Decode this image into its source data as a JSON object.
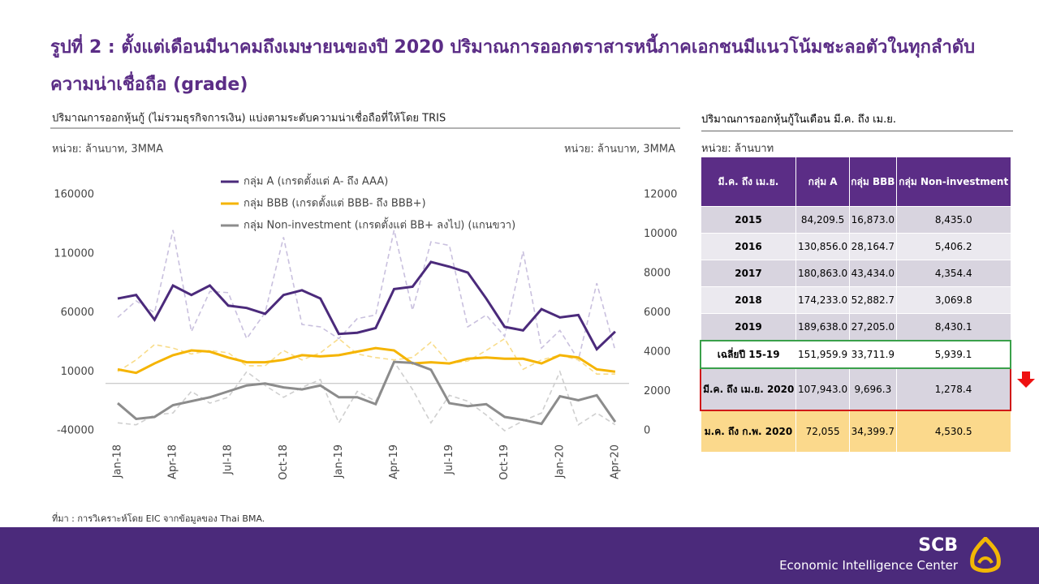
{
  "header": {
    "title": "รูปที่ 2 : ตั้งแต่เดือนมีนาคมถึงเมษายนของปี 2020 ปริมาณการออกตราสารหนี้ภาคเอกชนมีแนวโน้มชะลอตัวในทุกลำดับความน่าเชื่อถือ (grade)"
  },
  "chart_data": {
    "type": "line",
    "title": "ปริมาณการออกหุ้นกู้ (ไม่รวมธุรกิจการเงิน) แบ่งตามระดับความน่าเชื่อถือที่ให้โดย TRIS",
    "y_label": "หน่วย: ล้านบาท, 3MMA",
    "y2_label": "หน่วย: ล้านบาท, 3MMA",
    "categories": [
      "Jan-18",
      null,
      null,
      "Apr-18",
      null,
      null,
      "Jul-18",
      null,
      null,
      "Oct-18",
      null,
      null,
      "Jan-19",
      null,
      null,
      "Apr-19",
      null,
      null,
      "Jul-19",
      null,
      null,
      "Oct-19",
      null,
      null,
      "Jan-20",
      null,
      null,
      "Apr-20"
    ],
    "ylim": [
      -40000,
      160000
    ],
    "yticks": [
      -40000,
      10000,
      60000,
      110000,
      160000
    ],
    "y2lim": [
      0,
      12000
    ],
    "y2ticks": [
      0,
      2000,
      4000,
      6000,
      8000,
      10000,
      12000
    ],
    "legend": "top-left",
    "series": [
      {
        "name": "กลุ่ม A (เกรดตั้งแต่ A- ถึง AAA)",
        "color": "#4b2a7b",
        "raw_color": "#c9c0de",
        "values": [
          72000,
          75000,
          54000,
          83000,
          75000,
          83000,
          66000,
          64000,
          59000,
          75000,
          79000,
          72000,
          42000,
          43000,
          47000,
          80000,
          82000,
          103000,
          99000,
          94000,
          72000,
          48000,
          45000,
          63000,
          56000,
          58000,
          29000,
          44000
        ],
        "raw": [
          56000,
          70000,
          60000,
          130000,
          44000,
          78000,
          77000,
          38000,
          60000,
          124000,
          50000,
          48000,
          38000,
          55000,
          58000,
          130000,
          62000,
          120000,
          117000,
          48000,
          58000,
          40000,
          112000,
          30000,
          45000,
          20000,
          85000,
          28000
        ]
      },
      {
        "name": "กลุ่ม BBB (เกรดตั้งแต่ BBB- ถึง BBB+)",
        "color": "#f5b400",
        "raw_color": "#f8dc8a",
        "values": [
          12000,
          9000,
          17000,
          24000,
          28000,
          27000,
          22000,
          18000,
          18000,
          20000,
          24000,
          23000,
          24000,
          27000,
          30000,
          28000,
          17000,
          18000,
          17000,
          21000,
          22000,
          21000,
          21000,
          17000,
          24000,
          22000,
          12000,
          10000
        ],
        "raw": [
          10000,
          20000,
          33000,
          30000,
          25000,
          28000,
          26000,
          15000,
          15000,
          28000,
          20000,
          26000,
          38000,
          25000,
          22000,
          20000,
          22000,
          35000,
          17000,
          19000,
          28000,
          38000,
          12000,
          20000,
          24000,
          20000,
          8000,
          8000
        ]
      },
      {
        "name": "กลุ่ม Non-investment (เกรดตั้งแต่ BB+ ลงไป) (แกนขวา)",
        "color": "#8c8c8c",
        "raw_color": "#cfcfcf",
        "axis": "y2",
        "values": [
          1400,
          600,
          700,
          1300,
          1500,
          1700,
          2000,
          2300,
          2400,
          2200,
          2100,
          2300,
          1700,
          1700,
          1350,
          3500,
          3450,
          3100,
          1400,
          1250,
          1350,
          700,
          550,
          350,
          1750,
          1550,
          1800,
          450
        ],
        "raw": [
          400,
          300,
          800,
          900,
          2000,
          1400,
          1700,
          3000,
          2300,
          1700,
          2200,
          2600,
          400,
          2000,
          1500,
          3500,
          2100,
          400,
          1800,
          1500,
          800,
          0,
          500,
          900,
          3000,
          300,
          900,
          300
        ]
      }
    ]
  },
  "table": {
    "title": "ปริมาณการออกหุ้นกู้ในเดือน มี.ค. ถึง เม.ย.",
    "unit": "หน่วย: ล้านบาท",
    "columns": [
      "มี.ค. ถึง เม.ย.",
      "กลุ่ม A",
      "กลุ่ม BBB",
      "กลุ่ม Non-investment"
    ],
    "rows": [
      [
        "2015",
        "84,209.5",
        "16,873.0",
        "8,435.0"
      ],
      [
        "2016",
        "130,856.0",
        "28,164.7",
        "5,406.2"
      ],
      [
        "2017",
        "180,863.0",
        "43,434.0",
        "4,354.4"
      ],
      [
        "2018",
        "174,233.0",
        "52,882.7",
        "3,069.8"
      ],
      [
        "2019",
        "189,638.0",
        "27,205.0",
        "8,430.1"
      ],
      [
        "เฉลี่ยปี 15-19",
        "151,959.9",
        "33,711.9",
        "5,939.1"
      ],
      [
        "มี.ค. ถึง เม.ย. 2020",
        "107,943.0",
        "9,696.3",
        "1,278.4"
      ],
      [
        "ม.ค. ถึง ก.พ. 2020",
        "72,055",
        "34,399.7",
        "4,530.5"
      ]
    ]
  },
  "footer": {
    "source": "ที่มา : การวิเคราะห์โดย EIC จากข้อมูลของ Thai BMA.",
    "brand": "SCB",
    "center": "Economic Intelligence Center"
  }
}
